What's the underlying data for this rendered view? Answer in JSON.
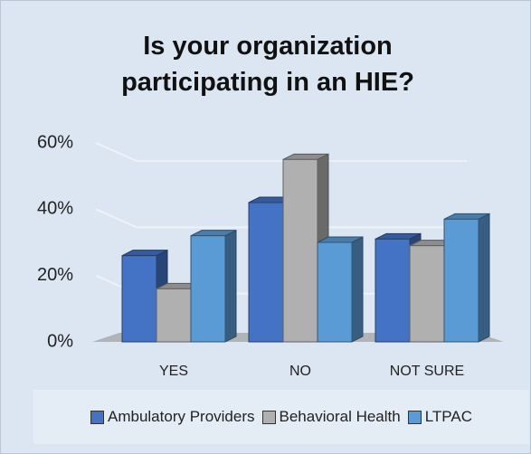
{
  "chart_data": {
    "type": "bar3d",
    "title": "Is your organization participating in an HIE?",
    "categories": [
      "YES",
      "NO",
      "NOT SURE"
    ],
    "series": [
      {
        "name": "Ambulatory Providers",
        "color": "#4472c4",
        "values": [
          26,
          42,
          31
        ]
      },
      {
        "name": "Behavioral Health",
        "color": "#b0b0b0",
        "values": [
          16,
          55,
          29
        ]
      },
      {
        "name": "LTPAC",
        "color": "#5b9bd5",
        "values": [
          32,
          30,
          37
        ]
      }
    ],
    "ylim": [
      0,
      60
    ],
    "yticks": [
      {
        "value": 0,
        "label": "0%"
      },
      {
        "value": 20,
        "label": "20%"
      },
      {
        "value": 40,
        "label": "40%"
      },
      {
        "value": 60,
        "label": "60%"
      }
    ],
    "grid": true,
    "legend": "bottom"
  }
}
